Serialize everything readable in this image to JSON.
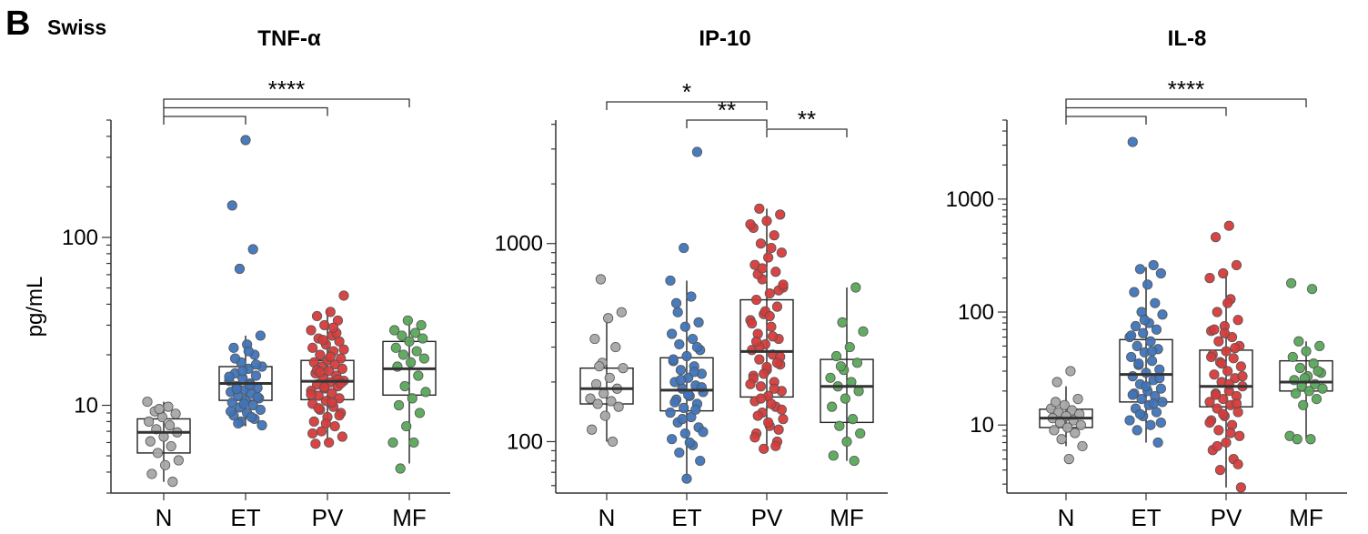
{
  "panel_label": "B",
  "panel_subtitle": "Swiss",
  "colors": {
    "N": "#a6a6a6",
    "ET": "#3f74b9",
    "PV": "#d63b3b",
    "MF": "#5aa75a",
    "axis": "#333333"
  },
  "chart_data": [
    {
      "type": "box",
      "title": "TNF-α",
      "ylabel": "pg/mL",
      "yscale": "log",
      "ylim": [
        3,
        500
      ],
      "ticks": [
        10,
        100
      ],
      "tick_labels": [
        "10",
        "100"
      ],
      "categories": [
        "N",
        "ET",
        "PV",
        "MF"
      ],
      "boxes": [
        {
          "q1": 5.2,
          "median": 6.9,
          "q3": 8.3,
          "whisker_low": 3.5,
          "whisker_high": 10.5
        },
        {
          "q1": 10.7,
          "median": 13.5,
          "q3": 17,
          "whisker_low": 7.5,
          "whisker_high": 26
        },
        {
          "q1": 10.8,
          "median": 13.9,
          "q3": 18.5,
          "whisker_low": 6,
          "whisker_high": 37
        },
        {
          "q1": 11.5,
          "median": 16.5,
          "q3": 24,
          "whisker_low": 4.5,
          "whisker_high": 32
        }
      ],
      "points": [
        [
          10.5,
          9.8,
          9.2,
          8.9,
          8.5,
          8,
          7.6,
          7.2,
          6.9,
          6.5,
          6.1,
          5.7,
          5.2,
          4.7,
          4.4,
          3.9,
          3.5,
          9.5
        ],
        [
          380,
          155,
          85,
          65,
          26,
          23,
          22,
          20,
          18,
          17,
          16.5,
          15.5,
          15,
          14.5,
          14,
          13.5,
          13,
          12.7,
          12.3,
          12,
          11.7,
          11.4,
          11,
          10.7,
          10.4,
          10,
          9.7,
          9.4,
          9,
          8.7,
          8.3,
          8,
          7.6,
          21,
          19,
          17.5,
          16,
          14.8,
          13.2,
          12.5,
          11.2,
          10.2,
          9.2,
          8.5,
          7.8
        ],
        [
          45,
          36,
          34,
          32,
          30,
          28,
          26,
          25,
          24,
          23,
          22,
          21,
          20,
          19,
          18.5,
          18,
          17.5,
          17,
          16.5,
          16,
          15.5,
          15,
          14.5,
          14,
          13.7,
          13.3,
          13,
          12.6,
          12.2,
          11.8,
          11.4,
          11,
          10.6,
          10.2,
          9.8,
          9.4,
          9,
          8.5,
          8,
          7.5,
          7,
          6.5,
          6,
          5.9,
          27,
          24.5,
          21.5,
          19.5,
          16.2,
          14.2,
          12.8,
          11.6,
          10.4,
          9.6,
          8.7,
          7.8,
          6.8,
          29,
          15.8,
          13.5
        ],
        [
          32,
          28,
          27,
          26,
          25,
          24,
          22,
          21,
          20,
          19,
          18,
          17,
          15,
          13,
          12,
          11,
          10,
          9,
          7.5,
          6,
          6,
          4.2,
          30
        ]
      ],
      "significance": [
        {
          "from": 0,
          "to": 1,
          "label": ""
        },
        {
          "from": 0,
          "to": 2,
          "label": ""
        },
        {
          "from": 0,
          "to": 3,
          "label": "****"
        }
      ]
    },
    {
      "type": "box",
      "title": "IP-10",
      "ylabel": "",
      "yscale": "log",
      "ylim": [
        55,
        4200
      ],
      "ticks": [
        100,
        1000
      ],
      "tick_labels": [
        "100",
        "1000"
      ],
      "categories": [
        "N",
        "ET",
        "PV",
        "MF"
      ],
      "boxes": [
        {
          "q1": 155,
          "median": 185,
          "q3": 235,
          "whisker_low": 100,
          "whisker_high": 420
        },
        {
          "q1": 143,
          "median": 182,
          "q3": 265,
          "whisker_low": 65,
          "whisker_high": 650
        },
        {
          "q1": 168,
          "median": 285,
          "q3": 520,
          "whisker_low": 90,
          "whisker_high": 1500
        },
        {
          "q1": 125,
          "median": 190,
          "q3": 260,
          "whisker_low": 80,
          "whisker_high": 600
        }
      ],
      "points": [
        [
          660,
          450,
          420,
          330,
          300,
          250,
          235,
          210,
          195,
          185,
          175,
          165,
          160,
          155,
          150,
          135,
          115,
          100,
          240
        ],
        [
          2900,
          950,
          650,
          540,
          450,
          400,
          380,
          350,
          330,
          310,
          290,
          270,
          255,
          240,
          230,
          220,
          210,
          200,
          192,
          185,
          178,
          170,
          163,
          155,
          148,
          140,
          133,
          125,
          118,
          110,
          103,
          96,
          88,
          80,
          65,
          260,
          225,
          205,
          188,
          172,
          158,
          145,
          130,
          112,
          99,
          500,
          300
        ],
        [
          1500,
          1400,
          1300,
          1200,
          1100,
          1000,
          900,
          850,
          780,
          720,
          660,
          600,
          560,
          520,
          480,
          440,
          410,
          380,
          350,
          330,
          310,
          290,
          275,
          260,
          245,
          230,
          215,
          200,
          190,
          180,
          170,
          160,
          150,
          140,
          130,
          120,
          110,
          100,
          92,
          1250,
          950,
          700,
          580,
          455,
          395,
          340,
          300,
          268,
          238,
          208,
          185,
          165,
          145,
          125,
          105,
          95,
          750,
          620,
          430,
          320,
          250,
          220,
          195,
          155,
          135,
          115
        ],
        [
          600,
          400,
          360,
          300,
          270,
          250,
          230,
          210,
          200,
          190,
          180,
          165,
          150,
          130,
          120,
          110,
          100,
          85,
          80,
          240
        ]
      ],
      "significance": [
        {
          "from": 0,
          "to": 2,
          "label": "*"
        },
        {
          "from": 1,
          "to": 2,
          "label": "**"
        },
        {
          "from": 2,
          "to": 3,
          "label": "**"
        }
      ]
    },
    {
      "type": "box",
      "title": "IL-8",
      "ylabel": "",
      "yscale": "log",
      "ylim": [
        2.5,
        5000
      ],
      "ticks": [
        10,
        100,
        1000
      ],
      "tick_labels": [
        "10",
        "100",
        "1000"
      ],
      "categories": [
        "N",
        "ET",
        "PV",
        "MF"
      ],
      "boxes": [
        {
          "q1": 9.5,
          "median": 11.5,
          "q3": 13.8,
          "whisker_low": 6.5,
          "whisker_high": 22
        },
        {
          "q1": 16,
          "median": 28,
          "q3": 57,
          "whisker_low": 7,
          "whisker_high": 250
        },
        {
          "q1": 14.5,
          "median": 22,
          "q3": 46,
          "whisker_low": 2.8,
          "whisker_high": 220
        },
        {
          "q1": 20,
          "median": 24,
          "q3": 37,
          "whisker_low": 7.5,
          "whisker_high": 55
        }
      ],
      "points": [
        [
          30,
          24,
          17,
          15,
          14,
          13.5,
          13,
          12.5,
          12,
          11.5,
          11,
          10.5,
          10,
          9.5,
          9,
          8.5,
          7.5,
          6.5,
          5,
          16
        ],
        [
          3200,
          260,
          240,
          220,
          175,
          150,
          120,
          100,
          95,
          80,
          75,
          70,
          65,
          60,
          55,
          50,
          47,
          44,
          40,
          37,
          34,
          31,
          29,
          27,
          25,
          23,
          21,
          20,
          19,
          18,
          17,
          16,
          15,
          14,
          13,
          12,
          11,
          10,
          9,
          7,
          85,
          62,
          45,
          35,
          26,
          22,
          18.5,
          15.5,
          12.5,
          10.5
        ],
        [
          580,
          460,
          260,
          220,
          200,
          130,
          100,
          85,
          75,
          68,
          60,
          55,
          50,
          45,
          42,
          39,
          36,
          33,
          30,
          28,
          26,
          24,
          22,
          20,
          19,
          18,
          17,
          16,
          15,
          14,
          13,
          12,
          11,
          10,
          9,
          8,
          7,
          6,
          5,
          4,
          2.8,
          120,
          70,
          48,
          35,
          27,
          23,
          18.5,
          15.5,
          12.5,
          10.5,
          8.5,
          6.5,
          4.5,
          65,
          40
        ],
        [
          180,
          160,
          55,
          50,
          45,
          40,
          35,
          32,
          29,
          27,
          25,
          23,
          22,
          21,
          20,
          19,
          17,
          15,
          8,
          7.5,
          7.5,
          30,
          26
        ]
      ],
      "significance": [
        {
          "from": 0,
          "to": 1,
          "label": ""
        },
        {
          "from": 0,
          "to": 2,
          "label": ""
        },
        {
          "from": 0,
          "to": 3,
          "label": "****"
        }
      ]
    }
  ]
}
